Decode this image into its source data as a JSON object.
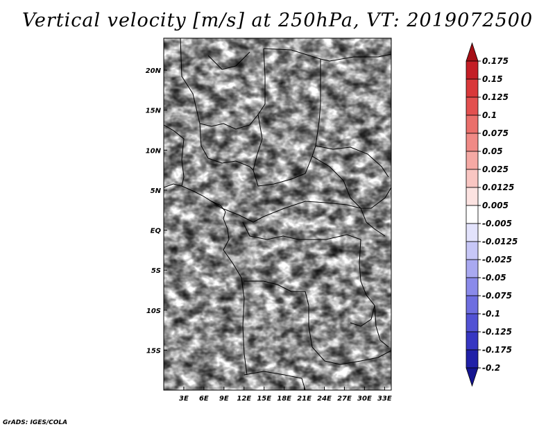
{
  "title": "Vertical velocity [m/s] at 250hPa, VT: 2019072500",
  "footer": "GrADS: IGES/COLA",
  "chart_data": {
    "type": "heatmap",
    "title": "Vertical velocity [m/s] at 250hPa, VT: 2019072500",
    "x_axis": {
      "range": [
        0,
        34
      ],
      "ticks": [
        "3E",
        "6E",
        "9E",
        "12E",
        "15E",
        "18E",
        "21E",
        "24E",
        "27E",
        "30E",
        "33E"
      ],
      "tick_values": [
        3,
        6,
        9,
        12,
        15,
        18,
        21,
        24,
        27,
        30,
        33
      ]
    },
    "y_axis": {
      "range": [
        -20,
        24
      ],
      "ticks": [
        "20N",
        "15N",
        "10N",
        "5N",
        "EQ",
        "5S",
        "10S",
        "15S"
      ],
      "tick_values": [
        20,
        15,
        10,
        5,
        0,
        -5,
        -10,
        -15
      ]
    },
    "colorbar": {
      "labels": [
        "0.175",
        "0.15",
        "0.125",
        "0.1",
        "0.075",
        "0.05",
        "0.025",
        "0.0125",
        "0.005",
        "-0.005",
        "-0.0125",
        "-0.025",
        "-0.05",
        "-0.075",
        "-0.1",
        "-0.125",
        "-0.175",
        "-0.2"
      ],
      "colors": [
        "#a50f15",
        "#c41e26",
        "#d9383a",
        "#e3504f",
        "#ea6f6b",
        "#f08a86",
        "#f5a9a4",
        "#f9c6c2",
        "#fce3e1",
        "#ffffff",
        "#e3e3fc",
        "#c7c7f7",
        "#a9a9f1",
        "#8a8aea",
        "#6e6ee0",
        "#5252d4",
        "#3636c2",
        "#2020a8",
        "#141490"
      ]
    },
    "grid": false,
    "legend": "right"
  }
}
